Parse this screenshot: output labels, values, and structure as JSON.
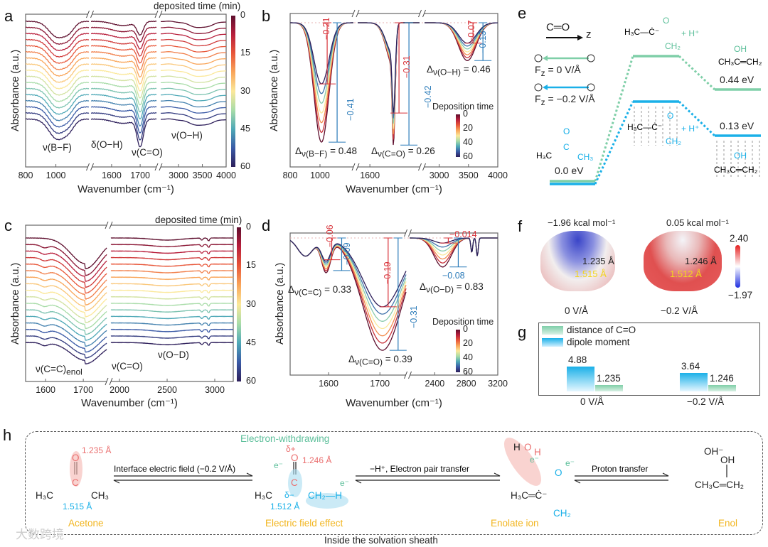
{
  "colors": {
    "red": "#d8333a",
    "blue": "#2b7bb9",
    "green": "#7fcfa8",
    "cyan": "#1ab0e8",
    "orange": "#f2b51e"
  },
  "chart_data": [
    {
      "panel": "a",
      "type": "line",
      "xlabel": "Wavenumber (cm⁻¹)",
      "ylabel": "Absorbance (a.u.)",
      "colorbar_title": "deposited time (min)",
      "colorbar_ticks": [
        "0",
        "15",
        "30",
        "45",
        "60"
      ],
      "segments": [
        {
          "range": [
            800,
            1218
          ],
          "ticks": [
            "800",
            "1000"
          ]
        },
        {
          "range": [
            1528,
            1757
          ],
          "ticks": [
            "1600",
            "1700"
          ]
        },
        {
          "range": [
            2625,
            4000
          ],
          "ticks": [
            "3000",
            "3500",
            "4000"
          ]
        }
      ],
      "n_curves": 17,
      "annotations": [
        "ν(B−F)",
        "δ(O−H)",
        "ν(C=O)",
        "ν(O−H)"
      ]
    },
    {
      "panel": "b",
      "type": "line",
      "xlabel": "Wavenumber (cm⁻¹)",
      "ylabel": "Absorbance (a.u.)",
      "colorbar_title": "Deposition time",
      "colorbar_ticks": [
        "0",
        "20",
        "40",
        "60"
      ],
      "segments": [
        {
          "range": [
            800,
            1224
          ],
          "ticks": [
            "800",
            "1000"
          ]
        },
        {
          "range": [
            1548,
            1812
          ],
          "ticks": [
            "1600"
          ]
        },
        {
          "range": [
            2750,
            4000
          ],
          "ticks": [
            "3000",
            "3500",
            "4000"
          ]
        }
      ],
      "peaks": [
        {
          "center": 1010,
          "depth_min": 0.21,
          "depth_max": 0.41,
          "label_min": "−0.21",
          "label_max": "−0.41",
          "delta_sub": "ν(B−F)",
          "delta": "= 0.48"
        },
        {
          "center": 1700,
          "depth_min": 0.31,
          "depth_max": 0.42,
          "label_min": "−0.31",
          "label_max": "−0.42",
          "delta_sub": "ν(C=O)",
          "delta": "= 0.26"
        },
        {
          "center": 3480,
          "depth_min": 0.07,
          "depth_max": 0.13,
          "label_min": "−0.07",
          "label_max": "−0.13",
          "delta_sub": "ν(O−H)",
          "delta": "= 0.46"
        }
      ]
    },
    {
      "panel": "c",
      "type": "line",
      "xlabel": "Wavenumber (cm⁻¹)",
      "ylabel": "Absorbance (a.u.)",
      "colorbar_title": "deposited time (min)",
      "colorbar_ticks": [
        "0",
        "15",
        "30",
        "45",
        "60"
      ],
      "segments": [
        {
          "range": [
            1547,
            1762
          ],
          "ticks": [
            "1600",
            "1700"
          ]
        },
        {
          "range": [
            1910,
            3194
          ],
          "ticks": [
            "2000",
            "2500",
            "3000"
          ]
        }
      ],
      "n_curves": 17,
      "annotations": [
        "ν(C=C)",
        "enol",
        "ν(C=O)",
        "ν(O−D)"
      ]
    },
    {
      "panel": "d",
      "type": "line",
      "xlabel": "Wavenumber (cm⁻¹)",
      "ylabel": "Absorbance (a.u.)",
      "colorbar_title": "Deposition time",
      "colorbar_ticks": [
        "0",
        "20",
        "40",
        "60"
      ],
      "segments": [
        {
          "range": [
            1525,
            1751
          ],
          "ticks": [
            "1600",
            "1700"
          ]
        },
        {
          "range": [
            2081,
            3200
          ],
          "ticks": [
            "2400",
            "2800",
            "3200"
          ]
        }
      ],
      "peaks": [
        {
          "center": 1595,
          "depth_min": 0.06,
          "depth_max": 0.09,
          "label_min": "−0.06",
          "label_max": "−0.09",
          "delta_sub": "ν(C=C)",
          "delta": "= 0.33"
        },
        {
          "center": 1705,
          "depth_min": 0.19,
          "depth_max": 0.31,
          "label_min": "−0.19",
          "label_max": "−0.31",
          "delta_sub": "ν(C=O)",
          "delta": "= 0.39"
        },
        {
          "center": 2500,
          "depth_min": 0.014,
          "depth_max": 0.08,
          "label_min": "−0.014",
          "label_max": "−0.08",
          "delta_sub": "ν(O−D)",
          "delta": "= 0.83"
        }
      ]
    },
    {
      "panel": "g",
      "type": "bar",
      "categories": [
        "0 V/Å",
        "−0.2 V/Å"
      ],
      "series": [
        {
          "name": "dipole moment",
          "values": [
            4.88,
            3.64
          ],
          "labels": [
            "4.88",
            "3.64"
          ]
        },
        {
          "name": "distance of C=O",
          "values": [
            1.235,
            1.246
          ],
          "labels": [
            "1.235",
            "1.246"
          ]
        }
      ]
    }
  ],
  "panel_e": {
    "label": "e",
    "bond": "C═O",
    "axis": "z",
    "plus": "+",
    "minus": "−",
    "field0": "F",
    "field0_sub": "z",
    "field0_val": " =  0 V/Å",
    "field1": "F",
    "field1_sub": "z",
    "field1_val": " = −0.2 V/Å",
    "energies": [
      "0.0 eV",
      "0.44 eV",
      "0.13 eV"
    ],
    "mol_acetone": [
      "O",
      "H₃C",
      "C",
      "CH₃"
    ],
    "mol_ts": "H₃C—Ċ⁻",
    "ts_o": "O",
    "ts_ch2": "CH₂",
    "ts_h": "+ H⁺",
    "mol_enol_oh": "OH",
    "mol_enol": "CH₃C═CH₂"
  },
  "panel_f": {
    "label": "f",
    "esp_left": "−1.96 kcal mol⁻¹",
    "esp_right": "0.05 kcal mol⁻¹",
    "co_left": "1.235 Å",
    "cc_left": "1.515 Å",
    "co_right": "1.246 Å",
    "cc_right": "1.512 Å",
    "field_left": "0 V/Å",
    "field_right": "−0.2 V/Å",
    "cb_max": "2.40",
    "cb_min": "−1.97"
  },
  "panel_g": {
    "label": "g",
    "legend": [
      "distance of C=O",
      "dipole moment"
    ]
  },
  "panel_h": {
    "label": "h",
    "step1": "Interface electric field (−0.2 V/Å)",
    "step2": "−H⁺, Electron pair transfer",
    "step3": "Proton transfer",
    "names": [
      "Acetone",
      "Electric field effect",
      "Enolate ion",
      "Enol"
    ],
    "ew": "Electron-withdrawing",
    "sheath": "Inside the solvation sheath",
    "acetone": {
      "o": "O",
      "c": "C",
      "h3c": "H₃C",
      "ch3": "CH₃",
      "co": "1.235 Å",
      "cc": "1.515 Å"
    },
    "efe": {
      "dp": "δ+",
      "o": "O",
      "c": "C",
      "h3c": "H₃C",
      "dm": "δ−",
      "ch2h": "CH₂—H",
      "co": "1.246 Å",
      "cc": "1.512 Å",
      "e": "e⁻"
    },
    "enolate": {
      "h": "H",
      "o1": "O",
      "h2": "H",
      "o2": "O",
      "c": "H₃C═Ċ⁻",
      "ch2": "CH₂",
      "e": "e⁻"
    },
    "enol": {
      "ohm": "OH⁻",
      "oh": "OH",
      "main": "CH₃C═CH₂"
    },
    "watermark": "大数跨境"
  }
}
